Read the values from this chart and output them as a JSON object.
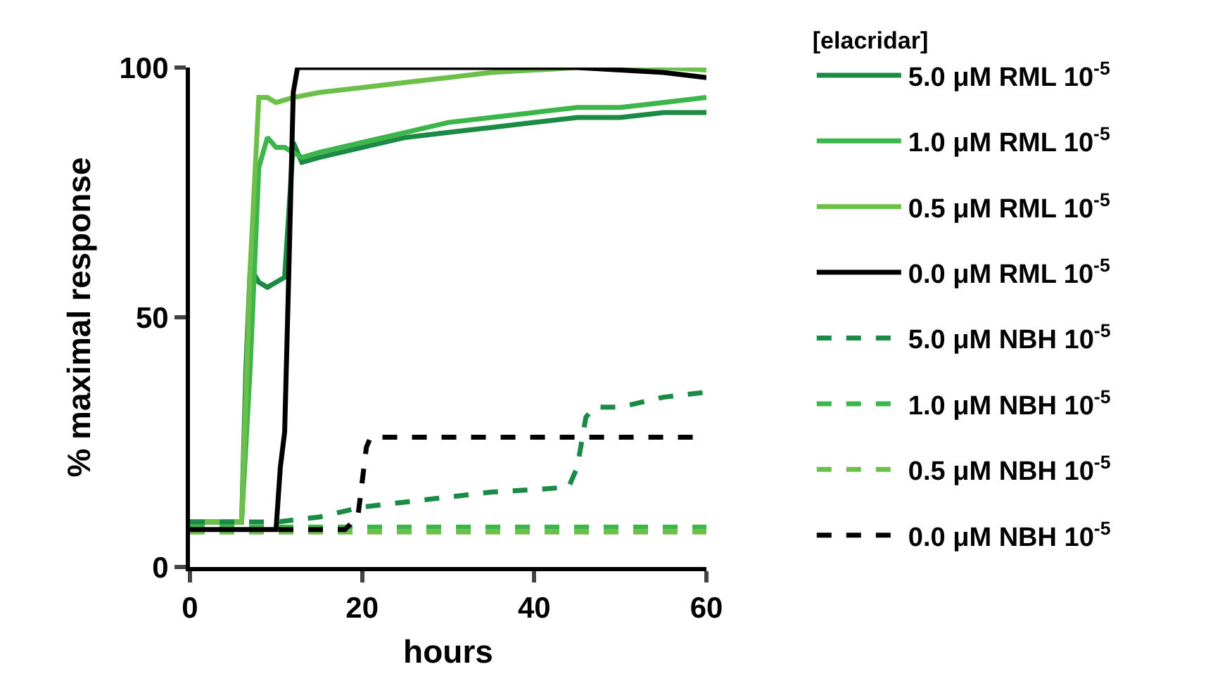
{
  "chart_data": {
    "type": "line",
    "xlabel": "hours",
    "ylabel": "% maximal response",
    "legend_title": "[elacridar]",
    "legend": "right",
    "grid": false,
    "marker": "none",
    "xlim": [
      0,
      60
    ],
    "ylim": [
      0,
      100
    ],
    "xticks": [
      0,
      20,
      40,
      60
    ],
    "yticks": [
      0,
      50,
      100
    ],
    "series": [
      {
        "name": "5.0 μM RML 10$^{-5}$",
        "color": "#1a8a44",
        "line_style": "solid",
        "x": [
          0,
          3,
          6,
          6.5,
          7,
          8,
          9,
          10,
          11,
          12,
          13,
          15,
          20,
          25,
          30,
          35,
          40,
          45,
          50,
          55,
          60
        ],
        "values": [
          9,
          9,
          9,
          40,
          60,
          57,
          56,
          57,
          58,
          85,
          81,
          82,
          84,
          86,
          87,
          88,
          89,
          90,
          90,
          91,
          91
        ]
      },
      {
        "name": "1.0 μM RML 10$^{-5}$",
        "color": "#3cb54a",
        "line_style": "solid",
        "x": [
          0,
          3,
          6,
          7,
          8,
          9,
          10,
          11,
          12,
          13,
          15,
          20,
          25,
          30,
          35,
          40,
          45,
          50,
          55,
          60
        ],
        "values": [
          9,
          9,
          9,
          40,
          80,
          86,
          84,
          84,
          83,
          82,
          83,
          85,
          87,
          89,
          90,
          91,
          92,
          92,
          93,
          94
        ]
      },
      {
        "name": "0.5 μM RML 10$^{-5}$",
        "color": "#6cc04a",
        "line_style": "solid",
        "x": [
          0,
          3,
          6,
          7,
          8,
          9,
          10,
          12,
          15,
          20,
          25,
          30,
          35,
          40,
          45,
          50,
          55,
          60
        ],
        "values": [
          9,
          9,
          9,
          60,
          94,
          94,
          93,
          94,
          95,
          96,
          97,
          98,
          99,
          99.5,
          100,
          100,
          100,
          99.5
        ]
      },
      {
        "name": "0.0 μM RML 10$^{-5}$",
        "color": "#000000",
        "line_style": "solid",
        "x": [
          0,
          5,
          10,
          10.5,
          11,
          11.5,
          12,
          12.5,
          20,
          30,
          40,
          45,
          50,
          55,
          60
        ],
        "values": [
          7.5,
          7.5,
          7.5,
          20,
          27,
          60,
          95,
          100,
          100,
          100,
          100,
          100,
          99.5,
          99,
          98
        ]
      },
      {
        "name": "5.0 μM NBH 10$^{-5}$",
        "color": "#1a8a44",
        "line_style": "dashed",
        "x": [
          0,
          5,
          10,
          15,
          20,
          25,
          30,
          35,
          40,
          44,
          45,
          46,
          47,
          50,
          55,
          60
        ],
        "values": [
          9,
          9,
          9,
          10,
          12,
          13,
          14,
          15,
          15.5,
          16,
          20,
          30,
          32,
          32,
          34,
          35
        ]
      },
      {
        "name": "1.0 μM NBH 10$^{-5}$",
        "color": "#3cb54a",
        "line_style": "dashed",
        "x": [
          0,
          10,
          20,
          30,
          40,
          50,
          60
        ],
        "values": [
          8,
          8,
          8,
          8,
          8,
          8,
          8
        ]
      },
      {
        "name": "0.5 μM NBH 10$^{-5}$",
        "color": "#6cc04a",
        "line_style": "dashed",
        "x": [
          0,
          10,
          20,
          30,
          40,
          50,
          60
        ],
        "values": [
          7,
          7,
          7,
          7,
          7,
          7,
          7
        ]
      },
      {
        "name": "0.0 μM NBH 10$^{-5}$",
        "color": "#000000",
        "line_style": "dashed",
        "x": [
          0,
          10,
          18,
          19.5,
          20.5,
          21,
          30,
          40,
          50,
          60
        ],
        "values": [
          7.5,
          7.5,
          7.5,
          10,
          24,
          26,
          26,
          26,
          26,
          26
        ]
      }
    ]
  }
}
